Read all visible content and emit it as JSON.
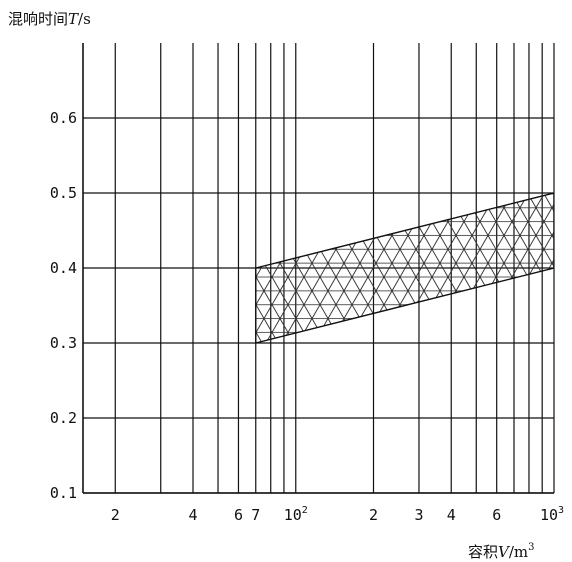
{
  "chart_data": {
    "type": "area",
    "ylabel_prefix": "混响时间",
    "ylabel_var": "T",
    "ylabel_unit": "/s",
    "xlabel_prefix": "容积",
    "xlabel_var": "V",
    "xlabel_unit": "/m",
    "xlabel_unit_sup": "3",
    "x_scale": "log",
    "xlim": [
      15,
      1000
    ],
    "ylim": [
      0.1,
      0.7
    ],
    "y_ticks": [
      "0.1",
      "0.2",
      "0.3",
      "0.4",
      "0.5",
      "0.6"
    ],
    "x_ticks": [
      {
        "value": 20,
        "label": "2"
      },
      {
        "value": 40,
        "label": "4"
      },
      {
        "value": 60,
        "label": "6"
      },
      {
        "value": 70,
        "label": "7"
      },
      {
        "value": 100,
        "label": "10",
        "sup": "2"
      },
      {
        "value": 200,
        "label": "2"
      },
      {
        "value": 300,
        "label": "3"
      },
      {
        "value": 400,
        "label": "4"
      },
      {
        "value": 600,
        "label": "6"
      },
      {
        "value": 1000,
        "label": "10",
        "sup": "3"
      }
    ],
    "x_gridlines": [
      20,
      30,
      40,
      50,
      60,
      70,
      80,
      90,
      100,
      200,
      300,
      400,
      500,
      600,
      700,
      800,
      900,
      1000
    ],
    "series": [
      {
        "upper": [
          [
            70,
            0.4
          ],
          [
            1000,
            0.5
          ]
        ],
        "lower": [
          [
            70,
            0.3
          ],
          [
            1000,
            0.4
          ]
        ],
        "fill": "crosshatch"
      }
    ],
    "grid": true,
    "colors": {
      "line": "#111111",
      "hatch": "#333333",
      "background": "#ffffff"
    }
  }
}
